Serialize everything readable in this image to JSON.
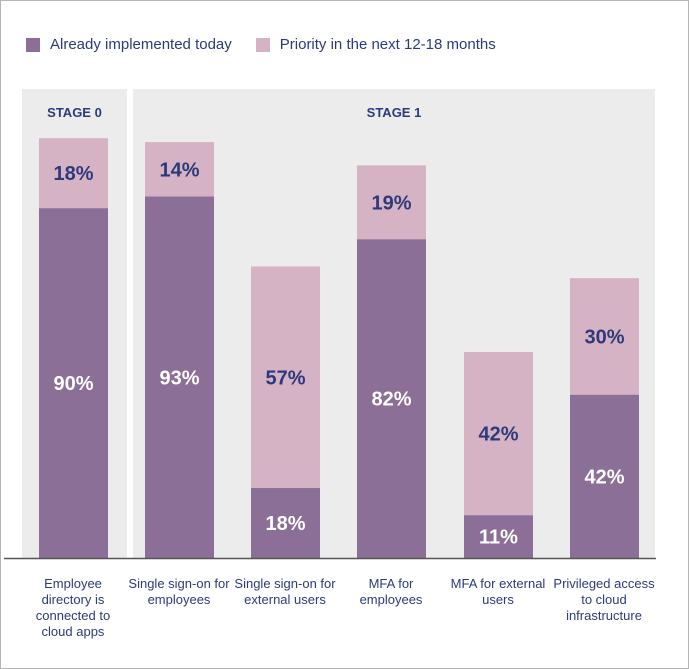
{
  "colors": {
    "implemented": "#8b6f96",
    "priority": "#d5b3c4",
    "stage_bg": "#ececec",
    "axis": "#555555",
    "text_dark": "#2c3a7c",
    "value_on_dark": "#ffffff",
    "value_on_light": "#2c3a7c"
  },
  "chart_data": {
    "type": "bar",
    "stacked": true,
    "legend": {
      "implemented": "Already implemented today",
      "priority": "Priority in the next 12-18 months"
    },
    "stages": [
      {
        "label": "STAGE 0",
        "categories": [
          0
        ]
      },
      {
        "label": "STAGE 1",
        "categories": [
          1,
          2,
          3,
          4,
          5
        ]
      }
    ],
    "categories": [
      "Employee directory is connected to cloud apps",
      "Single sign-on for employees",
      "Single sign-on for external users",
      "MFA for employees",
      "MFA for external users",
      "Privileged access to cloud infrastructure"
    ],
    "series": [
      {
        "name": "Already implemented today",
        "values": [
          90,
          93,
          18,
          82,
          11,
          42
        ],
        "labels": [
          "90%",
          "93%",
          "18%",
          "82%",
          "11%",
          "42%"
        ]
      },
      {
        "name": "Priority in the next 12-18 months",
        "values": [
          18,
          14,
          57,
          19,
          42,
          30
        ],
        "labels": [
          "18%",
          "14%",
          "57%",
          "19%",
          "42%",
          "30%"
        ]
      }
    ],
    "ylim": [
      0,
      108
    ]
  }
}
